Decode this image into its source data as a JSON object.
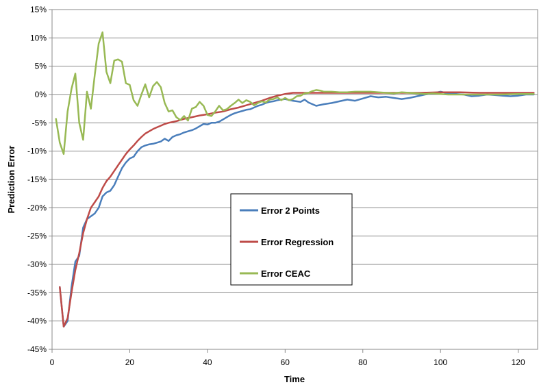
{
  "chart_data": {
    "type": "line",
    "xlabel": "Time",
    "ylabel": "Prediction Error",
    "xlim": [
      0,
      125
    ],
    "ylim": [
      -45,
      15
    ],
    "x_ticks": [
      0,
      20,
      40,
      60,
      80,
      100,
      120
    ],
    "y_ticks": [
      15,
      10,
      5,
      0,
      -5,
      -10,
      -15,
      -20,
      -25,
      -30,
      -35,
      -40,
      -45
    ],
    "y_tick_format": "percent",
    "grid": "horizontal",
    "legend_position": "center-right",
    "series": [
      {
        "name": "Error 2 Points",
        "color": "#4a7ebb",
        "points": [
          [
            2,
            -34
          ],
          [
            3,
            -41
          ],
          [
            4,
            -40
          ],
          [
            5,
            -34
          ],
          [
            6,
            -29.5
          ],
          [
            7,
            -28.5
          ],
          [
            8,
            -23.5
          ],
          [
            9,
            -22
          ],
          [
            10,
            -21.5
          ],
          [
            11,
            -21
          ],
          [
            12,
            -20
          ],
          [
            13,
            -18
          ],
          [
            14,
            -17.3
          ],
          [
            15,
            -17
          ],
          [
            16,
            -16
          ],
          [
            17,
            -14.5
          ],
          [
            18,
            -13
          ],
          [
            19,
            -12
          ],
          [
            20,
            -11.3
          ],
          [
            21,
            -11
          ],
          [
            22,
            -10
          ],
          [
            23,
            -9.3
          ],
          [
            24,
            -9
          ],
          [
            25,
            -8.8
          ],
          [
            26,
            -8.7
          ],
          [
            27,
            -8.5
          ],
          [
            28,
            -8.3
          ],
          [
            29,
            -7.8
          ],
          [
            30,
            -8.2
          ],
          [
            31,
            -7.5
          ],
          [
            32,
            -7.2
          ],
          [
            33,
            -7
          ],
          [
            34,
            -6.7
          ],
          [
            35,
            -6.5
          ],
          [
            36,
            -6.3
          ],
          [
            37,
            -6
          ],
          [
            38,
            -5.6
          ],
          [
            39,
            -5.2
          ],
          [
            40,
            -5.3
          ],
          [
            41,
            -5
          ],
          [
            42,
            -5
          ],
          [
            43,
            -4.8
          ],
          [
            44,
            -4.4
          ],
          [
            45,
            -4
          ],
          [
            46,
            -3.6
          ],
          [
            47,
            -3.3
          ],
          [
            48,
            -3.1
          ],
          [
            49,
            -2.9
          ],
          [
            50,
            -2.7
          ],
          [
            51,
            -2.6
          ],
          [
            52,
            -2.3
          ],
          [
            53,
            -2
          ],
          [
            54,
            -1.8
          ],
          [
            55,
            -1.5
          ],
          [
            56,
            -1.3
          ],
          [
            57,
            -1.2
          ],
          [
            58,
            -1
          ],
          [
            59,
            -0.9
          ],
          [
            60,
            -0.8
          ],
          [
            62,
            -1.1
          ],
          [
            64,
            -1.3
          ],
          [
            65,
            -0.9
          ],
          [
            66,
            -1.4
          ],
          [
            68,
            -2
          ],
          [
            70,
            -1.7
          ],
          [
            72,
            -1.5
          ],
          [
            74,
            -1.2
          ],
          [
            76,
            -0.9
          ],
          [
            78,
            -1.1
          ],
          [
            80,
            -0.7
          ],
          [
            82,
            -0.3
          ],
          [
            84,
            -0.5
          ],
          [
            86,
            -0.4
          ],
          [
            88,
            -0.6
          ],
          [
            90,
            -0.8
          ],
          [
            92,
            -0.6
          ],
          [
            94,
            -0.3
          ],
          [
            96,
            0
          ],
          [
            98,
            0.2
          ],
          [
            100,
            0.5
          ],
          [
            102,
            0.2
          ],
          [
            104,
            0.1
          ],
          [
            106,
            0
          ],
          [
            108,
            -0.3
          ],
          [
            110,
            -0.2
          ],
          [
            112,
            0
          ],
          [
            114,
            -0.1
          ],
          [
            116,
            -0.2
          ],
          [
            118,
            -0.3
          ],
          [
            120,
            -0.2
          ],
          [
            122,
            0
          ],
          [
            124,
            0
          ]
        ]
      },
      {
        "name": "Error Regression",
        "color": "#be4b48",
        "points": [
          [
            2,
            -34
          ],
          [
            3,
            -41
          ],
          [
            4,
            -39.5
          ],
          [
            5,
            -35
          ],
          [
            6,
            -31
          ],
          [
            7,
            -28
          ],
          [
            8,
            -24.5
          ],
          [
            9,
            -22
          ],
          [
            10,
            -20
          ],
          [
            11,
            -19
          ],
          [
            12,
            -18
          ],
          [
            13,
            -16.5
          ],
          [
            14,
            -15.3
          ],
          [
            15,
            -14.5
          ],
          [
            16,
            -13.5
          ],
          [
            17,
            -12.5
          ],
          [
            18,
            -11.5
          ],
          [
            19,
            -10.5
          ],
          [
            20,
            -9.7
          ],
          [
            21,
            -9
          ],
          [
            22,
            -8.2
          ],
          [
            23,
            -7.5
          ],
          [
            24,
            -6.9
          ],
          [
            25,
            -6.5
          ],
          [
            26,
            -6.1
          ],
          [
            27,
            -5.8
          ],
          [
            28,
            -5.5
          ],
          [
            29,
            -5.2
          ],
          [
            30,
            -5
          ],
          [
            32,
            -4.7
          ],
          [
            34,
            -4.3
          ],
          [
            36,
            -4
          ],
          [
            38,
            -3.7
          ],
          [
            40,
            -3.5
          ],
          [
            42,
            -3.2
          ],
          [
            44,
            -3
          ],
          [
            46,
            -2.6
          ],
          [
            48,
            -2.3
          ],
          [
            50,
            -1.9
          ],
          [
            52,
            -1.5
          ],
          [
            54,
            -1.1
          ],
          [
            56,
            -0.6
          ],
          [
            58,
            -0.2
          ],
          [
            60,
            0.1
          ],
          [
            62,
            0.3
          ],
          [
            64,
            0.3
          ],
          [
            66,
            0.3
          ],
          [
            70,
            0.3
          ],
          [
            75,
            0.3
          ],
          [
            80,
            0.3
          ],
          [
            85,
            0.3
          ],
          [
            90,
            0.3
          ],
          [
            95,
            0.3
          ],
          [
            100,
            0.4
          ],
          [
            105,
            0.4
          ],
          [
            110,
            0.3
          ],
          [
            115,
            0.3
          ],
          [
            120,
            0.3
          ],
          [
            124,
            0.3
          ]
        ]
      },
      {
        "name": "Error CEAC",
        "color": "#98b954",
        "points": [
          [
            1,
            -4.3
          ],
          [
            2,
            -8.5
          ],
          [
            3,
            -10.5
          ],
          [
            4,
            -3
          ],
          [
            5,
            1
          ],
          [
            6,
            3.7
          ],
          [
            7,
            -5
          ],
          [
            8,
            -8
          ],
          [
            9,
            0.5
          ],
          [
            10,
            -2.5
          ],
          [
            11,
            3.5
          ],
          [
            12,
            9
          ],
          [
            13,
            11
          ],
          [
            14,
            4
          ],
          [
            15,
            2
          ],
          [
            16,
            6
          ],
          [
            17,
            6.2
          ],
          [
            18,
            5.8
          ],
          [
            19,
            2
          ],
          [
            20,
            1.7
          ],
          [
            21,
            -1
          ],
          [
            22,
            -2
          ],
          [
            23,
            0
          ],
          [
            24,
            1.8
          ],
          [
            25,
            -0.5
          ],
          [
            26,
            1.5
          ],
          [
            27,
            2.2
          ],
          [
            28,
            1.3
          ],
          [
            29,
            -1.5
          ],
          [
            30,
            -3
          ],
          [
            31,
            -2.8
          ],
          [
            32,
            -4
          ],
          [
            33,
            -4.5
          ],
          [
            34,
            -3.8
          ],
          [
            35,
            -4.6
          ],
          [
            36,
            -2.5
          ],
          [
            37,
            -2.2
          ],
          [
            38,
            -1.3
          ],
          [
            39,
            -2
          ],
          [
            40,
            -3.6
          ],
          [
            41,
            -3.8
          ],
          [
            42,
            -3
          ],
          [
            43,
            -2
          ],
          [
            44,
            -2.8
          ],
          [
            45,
            -2.6
          ],
          [
            46,
            -2
          ],
          [
            47,
            -1.5
          ],
          [
            48,
            -0.9
          ],
          [
            49,
            -1.5
          ],
          [
            50,
            -1
          ],
          [
            51,
            -1.3
          ],
          [
            52,
            -1.9
          ],
          [
            53,
            -1.5
          ],
          [
            54,
            -1.2
          ],
          [
            55,
            -1.4
          ],
          [
            56,
            -0.9
          ],
          [
            57,
            -0.8
          ],
          [
            58,
            -0.5
          ],
          [
            59,
            -1
          ],
          [
            60,
            -0.6
          ],
          [
            61,
            -1
          ],
          [
            62,
            -0.8
          ],
          [
            63,
            -0.3
          ],
          [
            64,
            -0.2
          ],
          [
            65,
            0.2
          ],
          [
            66,
            0.3
          ],
          [
            67,
            0.6
          ],
          [
            68,
            0.8
          ],
          [
            69,
            0.7
          ],
          [
            70,
            0.5
          ],
          [
            72,
            0.5
          ],
          [
            74,
            0.4
          ],
          [
            76,
            0.4
          ],
          [
            78,
            0.5
          ],
          [
            80,
            0.5
          ],
          [
            82,
            0.5
          ],
          [
            84,
            0.4
          ],
          [
            86,
            0.3
          ],
          [
            88,
            0.2
          ],
          [
            90,
            0.4
          ],
          [
            92,
            0.3
          ],
          [
            94,
            0.2
          ],
          [
            96,
            0.1
          ],
          [
            98,
            0.2
          ],
          [
            100,
            0.1
          ],
          [
            102,
            0
          ],
          [
            104,
            0
          ],
          [
            106,
            0
          ],
          [
            110,
            0
          ],
          [
            115,
            0
          ],
          [
            120,
            0.1
          ],
          [
            124,
            0.1
          ]
        ]
      }
    ]
  }
}
